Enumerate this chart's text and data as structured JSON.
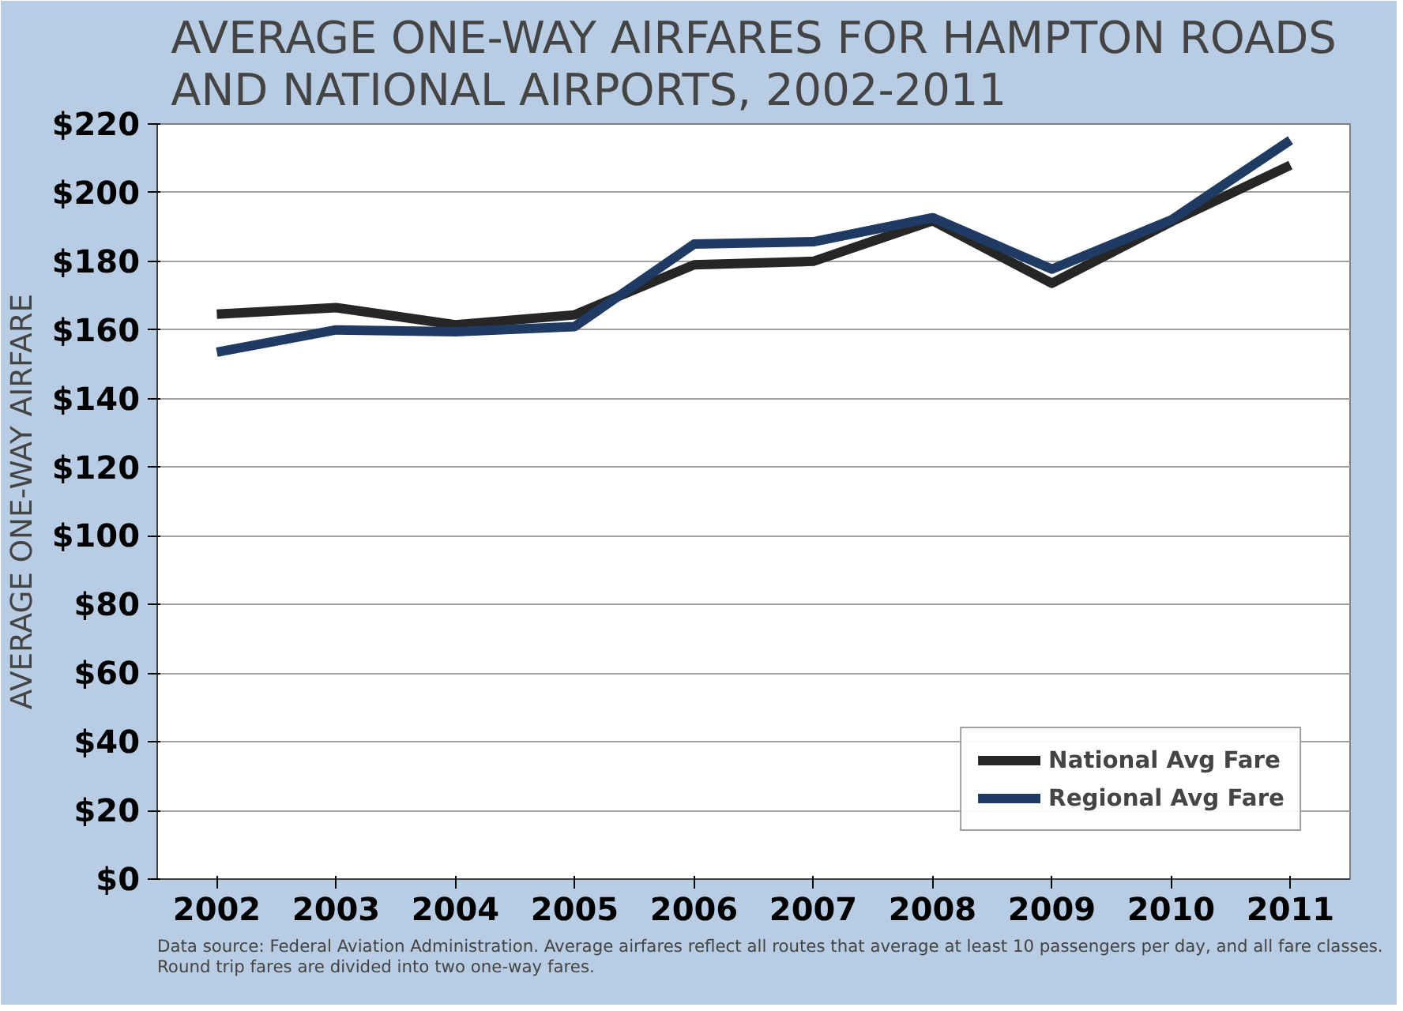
{
  "chart_data": {
    "type": "line",
    "title": "AVERAGE ONE-WAY AIRFARES FOR HAMPTON ROADS\nAND NATIONAL AIRPORTS, 2002-2011",
    "ylabel": "AVERAGE ONE-WAY AIRFARE",
    "categories": [
      "2002",
      "2003",
      "2004",
      "2005",
      "2006",
      "2007",
      "2008",
      "2009",
      "2010",
      "2011"
    ],
    "series": [
      {
        "name": "National Avg Fare",
        "color": "#262626",
        "values": [
          164.6,
          166.5,
          161.5,
          164.4,
          179,
          180,
          191.8,
          173.6,
          191.5,
          208
        ]
      },
      {
        "name": "Regional Avg Fare",
        "color": "#1f3b63",
        "values": [
          153.5,
          160,
          159.5,
          161,
          185,
          185.7,
          192.7,
          177.7,
          192,
          215.3
        ]
      }
    ],
    "ylim": [
      0,
      220
    ],
    "yticks": [
      {
        "value": 0,
        "label": "$0"
      },
      {
        "value": 20,
        "label": "$20"
      },
      {
        "value": 40,
        "label": "$40"
      },
      {
        "value": 60,
        "label": "$60"
      },
      {
        "value": 80,
        "label": "$80"
      },
      {
        "value": 100,
        "label": "$100"
      },
      {
        "value": 120,
        "label": "$120"
      },
      {
        "value": 140,
        "label": "$140"
      },
      {
        "value": 160,
        "label": "$160"
      },
      {
        "value": 180,
        "label": "$180"
      },
      {
        "value": 200,
        "label": "$200"
      },
      {
        "value": 220,
        "label": "$220"
      }
    ],
    "grid": "y",
    "legend": "bottom right",
    "marker": "none",
    "line_style": "solid",
    "annotations": [
      "Data source: Federal Aviation Administration.  Average airfares reflect all routes that average at least 10 passengers per day, and all fare classes.\nRound trip fares are divided into two one-way fares."
    ]
  }
}
